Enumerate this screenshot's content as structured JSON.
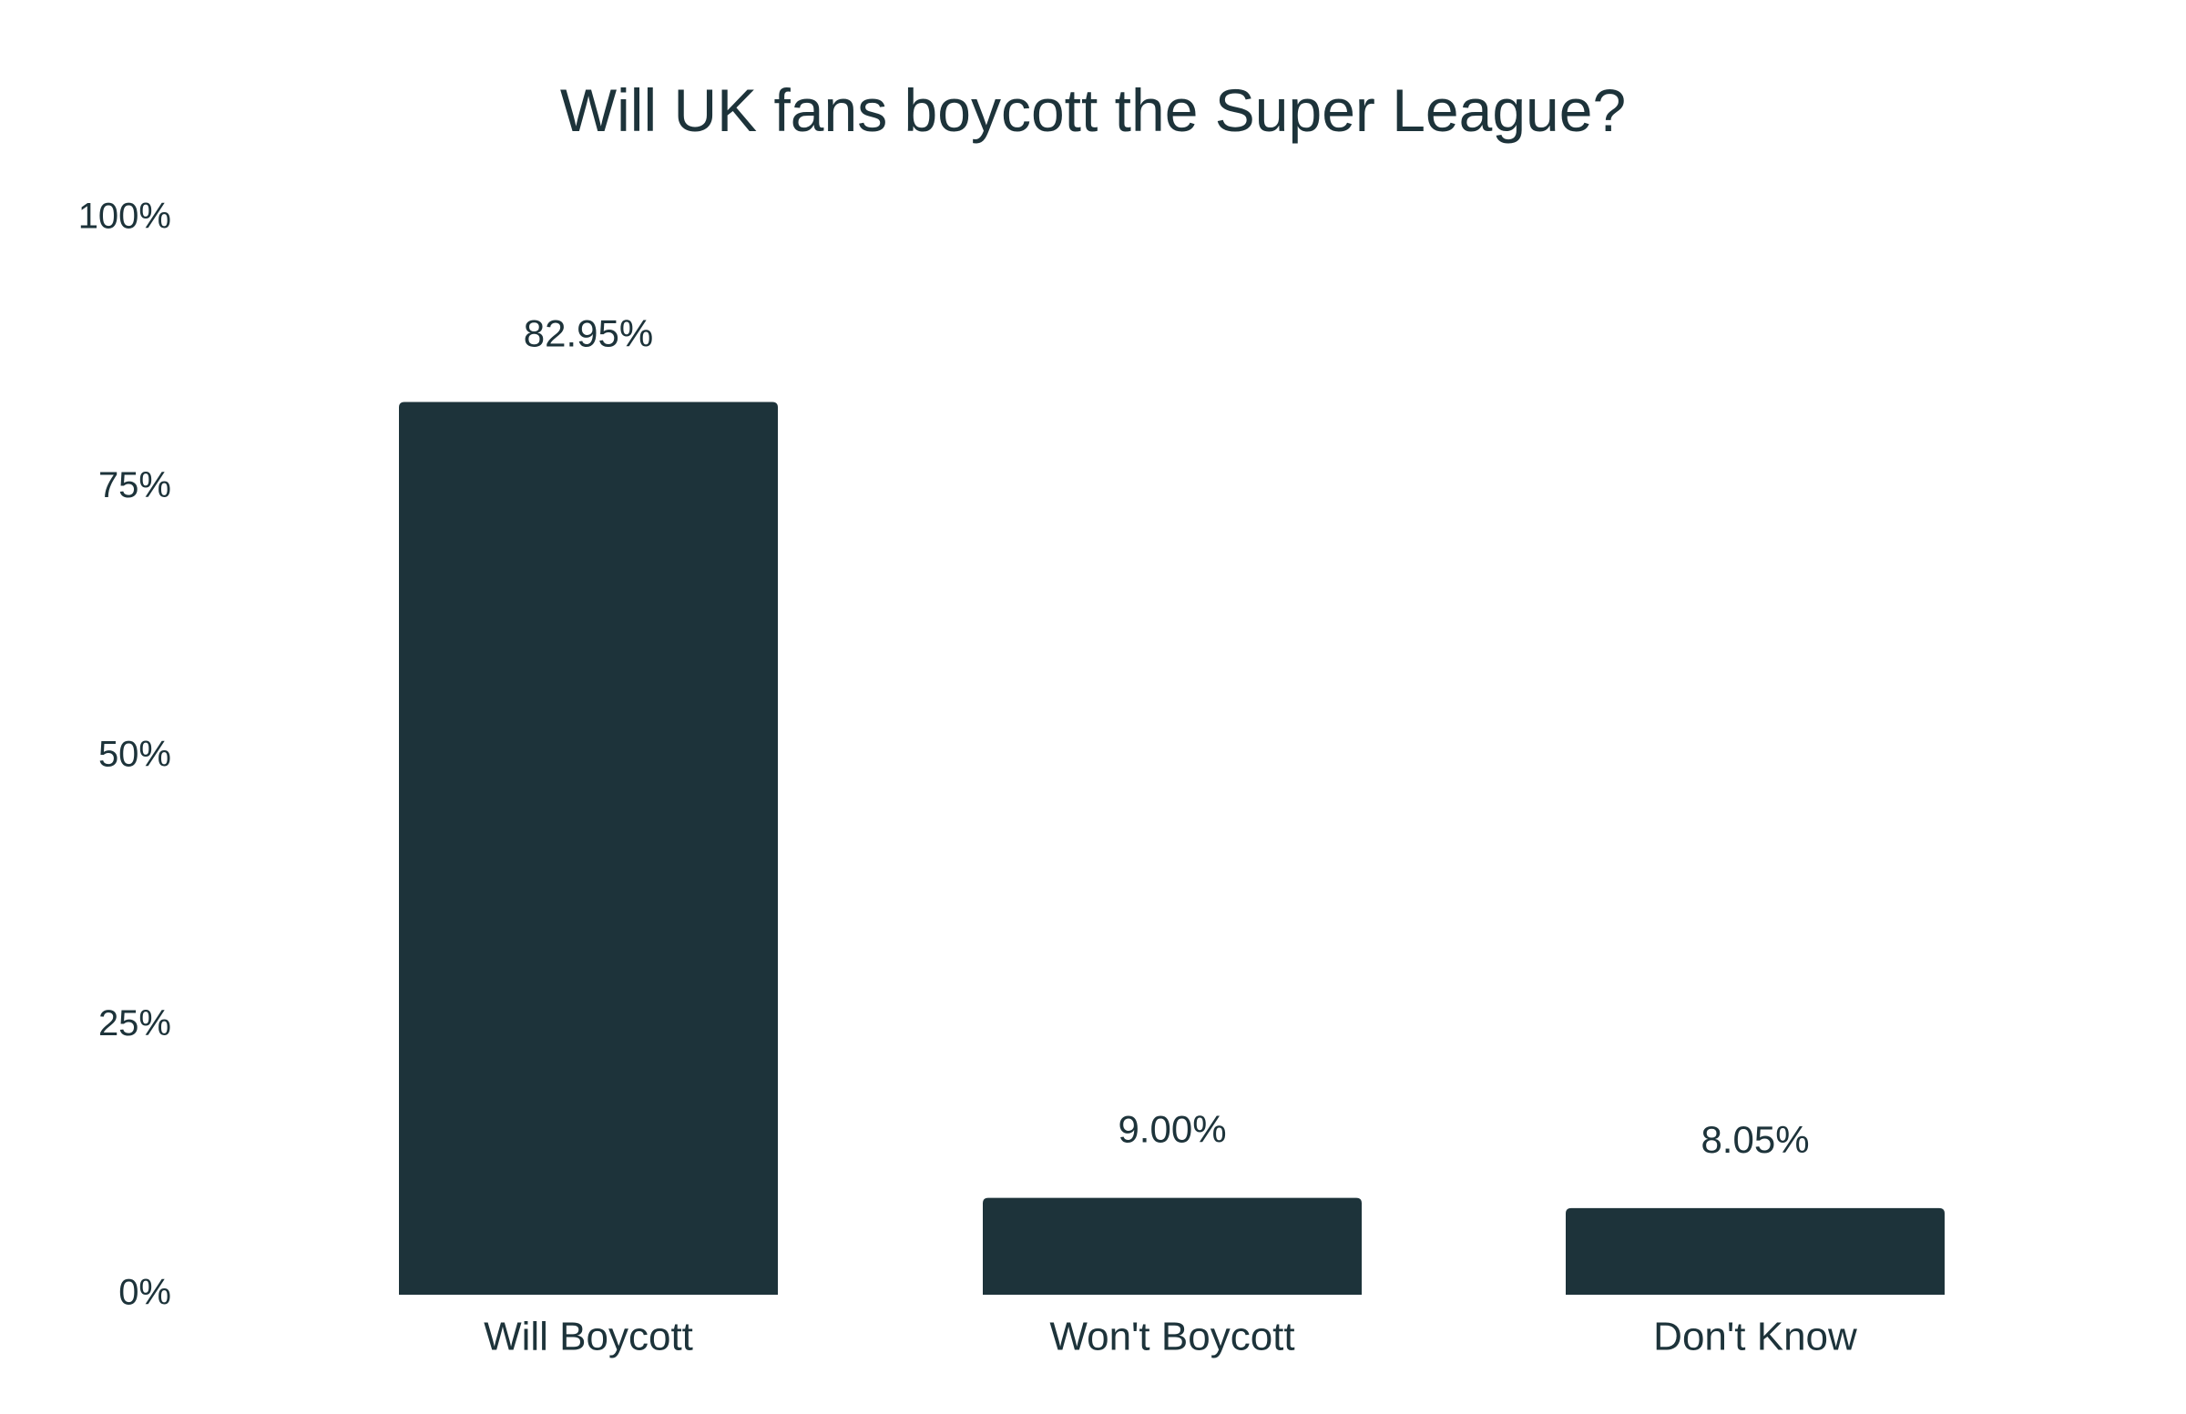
{
  "chart_data": {
    "type": "bar",
    "title": "Will UK fans boycott the Super League?",
    "xlabel": "",
    "ylabel": "",
    "categories": [
      "Will Boycott",
      "Won't Boycott",
      "Don't Know"
    ],
    "values": [
      82.95,
      9.0,
      8.05
    ],
    "data_labels": [
      "82.95%",
      "9.00%",
      "8.05%"
    ],
    "ylim": [
      0,
      100
    ],
    "yticks": [
      0,
      25,
      50,
      75,
      100
    ],
    "ytick_labels": [
      "0%",
      "25%",
      "50%",
      "75%",
      "100%"
    ],
    "grid": false,
    "legend": "none",
    "colors": {
      "bar": "#1d333a",
      "text": "#1d333a",
      "background": "#ffffff"
    }
  }
}
